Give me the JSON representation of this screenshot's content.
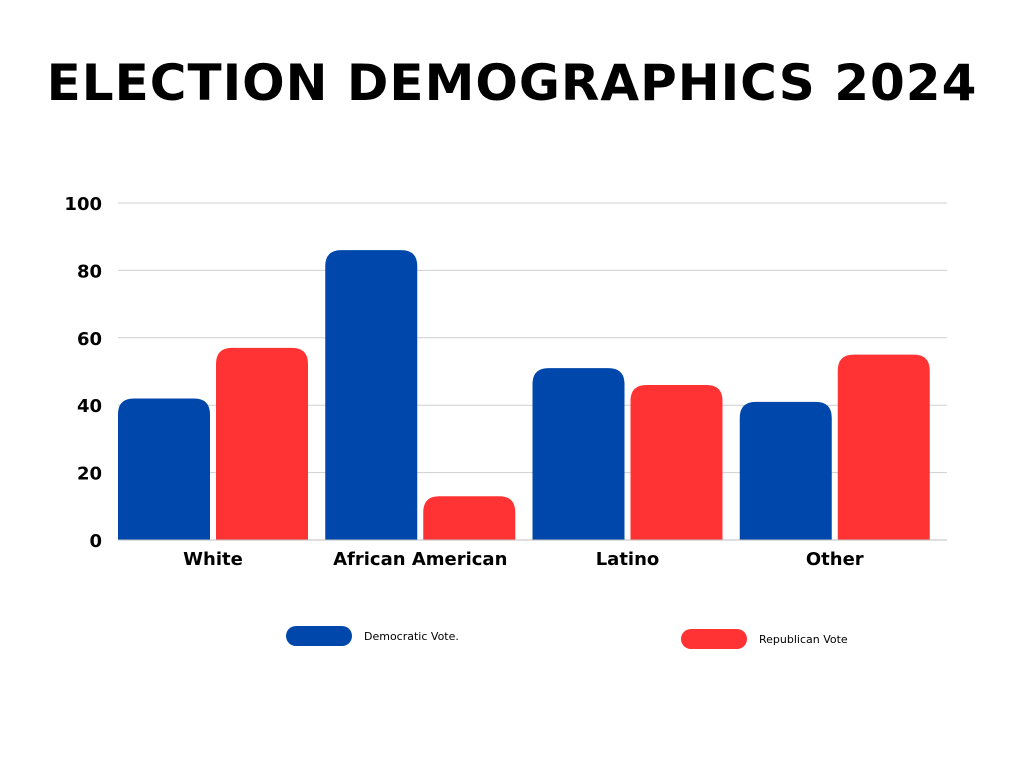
{
  "chart_data": {
    "type": "bar",
    "title": "ELECTION DEMOGRAPHICS 2024",
    "categories": [
      "White",
      "African American",
      "Latino",
      "Other"
    ],
    "series": [
      {
        "name": "Democratic Vote.",
        "values": [
          42,
          86,
          51,
          41
        ],
        "color": "#0047AB"
      },
      {
        "name": "Republican Vote",
        "values": [
          57,
          13,
          46,
          55
        ],
        "color": "#FF3333"
      }
    ],
    "yticks": [
      "0",
      "20",
      "40",
      "60",
      "80",
      "100"
    ],
    "ylim": [
      0,
      100
    ],
    "grid": true,
    "legend_position": "bottom"
  }
}
